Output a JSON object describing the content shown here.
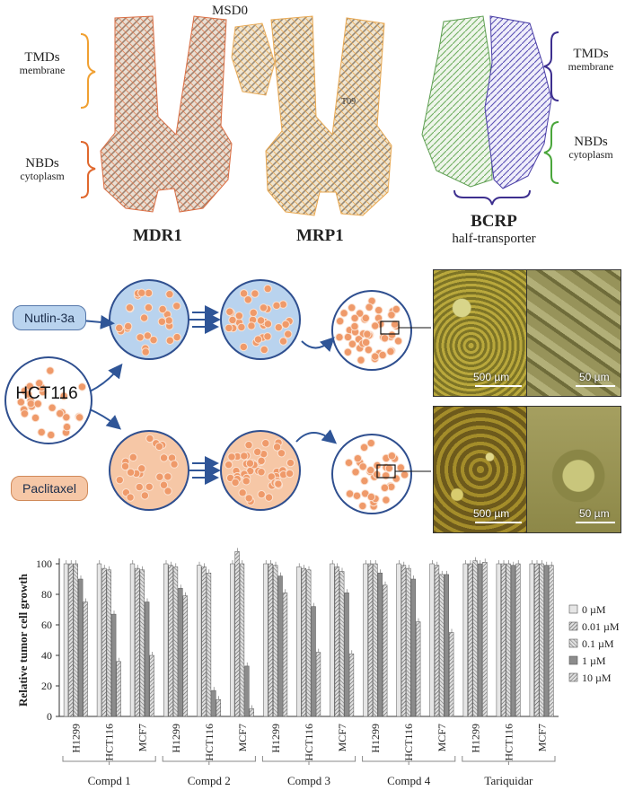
{
  "structures": {
    "msd0": "MSD0",
    "mdr1": {
      "name": "MDR1",
      "tmds_title": "TMDs",
      "tmds_sub": "membrane",
      "nbds_title": "NBDs",
      "nbds_sub": "cytoplasm"
    },
    "mrp1": {
      "name": "MRP1",
      "inner_label": "T09"
    },
    "bcrp": {
      "name": "BCRP",
      "sub": "half-transporter",
      "tmds_title": "TMDs",
      "tmds_sub": "membrane",
      "nbds_title": "NBDs",
      "nbds_sub": "cytoplasm"
    }
  },
  "workflow": {
    "start_cell": "HCT116",
    "drug_top": "Nutlin-3a",
    "drug_bottom": "Paclitaxel",
    "colors": {
      "blue_dish": "#b9d3ee",
      "orange_dish": "#f6c7a6",
      "cell": "#ef9a6a",
      "arrow": "#2f5597"
    },
    "micrographs": {
      "top_left_scale": "500 µm",
      "top_right_scale": "50 µm",
      "bottom_left_scale": "500 µm",
      "bottom_right_scale": "50 µm"
    }
  },
  "chart_data": {
    "type": "bar",
    "ylabel": "Relative tumor cell growth",
    "ylim": [
      0,
      100
    ],
    "yticks": [
      0,
      20,
      40,
      60,
      80,
      100
    ],
    "groups": [
      {
        "name": "Compd 1",
        "cells": [
          {
            "line": "H1299",
            "values": [
              100,
              100,
              100,
              90,
              75
            ]
          },
          {
            "line": "HCT116",
            "values": [
              100,
              97,
              96,
              67,
              36
            ]
          },
          {
            "line": "MCF7",
            "values": [
              100,
              97,
              96,
              75,
              40
            ]
          }
        ]
      },
      {
        "name": "Compd 2",
        "cells": [
          {
            "line": "H1299",
            "values": [
              100,
              99,
              98,
              84,
              79
            ]
          },
          {
            "line": "HCT116",
            "values": [
              99,
              98,
              94,
              17,
              11
            ]
          },
          {
            "line": "MCF7",
            "values": [
              100,
              108,
              100,
              33,
              5
            ]
          }
        ]
      },
      {
        "name": "Compd 3",
        "cells": [
          {
            "line": "H1299",
            "values": [
              100,
              100,
              99,
              92,
              81
            ]
          },
          {
            "line": "HCT116",
            "values": [
              98,
              97,
              96,
              72,
              42
            ]
          },
          {
            "line": "MCF7",
            "values": [
              100,
              98,
              95,
              81,
              41
            ]
          }
        ]
      },
      {
        "name": "Compd 4",
        "cells": [
          {
            "line": "H1299",
            "values": [
              100,
              100,
              100,
              94,
              86
            ]
          },
          {
            "line": "HCT116",
            "values": [
              100,
              99,
              97,
              90,
              62
            ]
          },
          {
            "line": "MCF7",
            "values": [
              100,
              99,
              93,
              93,
              55
            ]
          }
        ]
      },
      {
        "name": "Tariquidar",
        "cells": [
          {
            "line": "H1299",
            "values": [
              100,
              100,
              102,
              100,
              101
            ]
          },
          {
            "line": "HCT116",
            "values": [
              100,
              100,
              100,
              99,
              100
            ]
          },
          {
            "line": "MCF7",
            "values": [
              100,
              100,
              100,
              99,
              99
            ]
          }
        ]
      }
    ],
    "series": [
      {
        "name": "0 µM",
        "fill": "#e6e6e6"
      },
      {
        "name": "0.01 µM",
        "fill": "#bdbdbd"
      },
      {
        "name": "0.1 µM",
        "fill": "#d4d4d4"
      },
      {
        "name": "1 µM",
        "fill": "#8c8c8c"
      },
      {
        "name": "10 µM",
        "fill": "#b0b0b0"
      }
    ],
    "legend_position": "right",
    "grid": false
  }
}
